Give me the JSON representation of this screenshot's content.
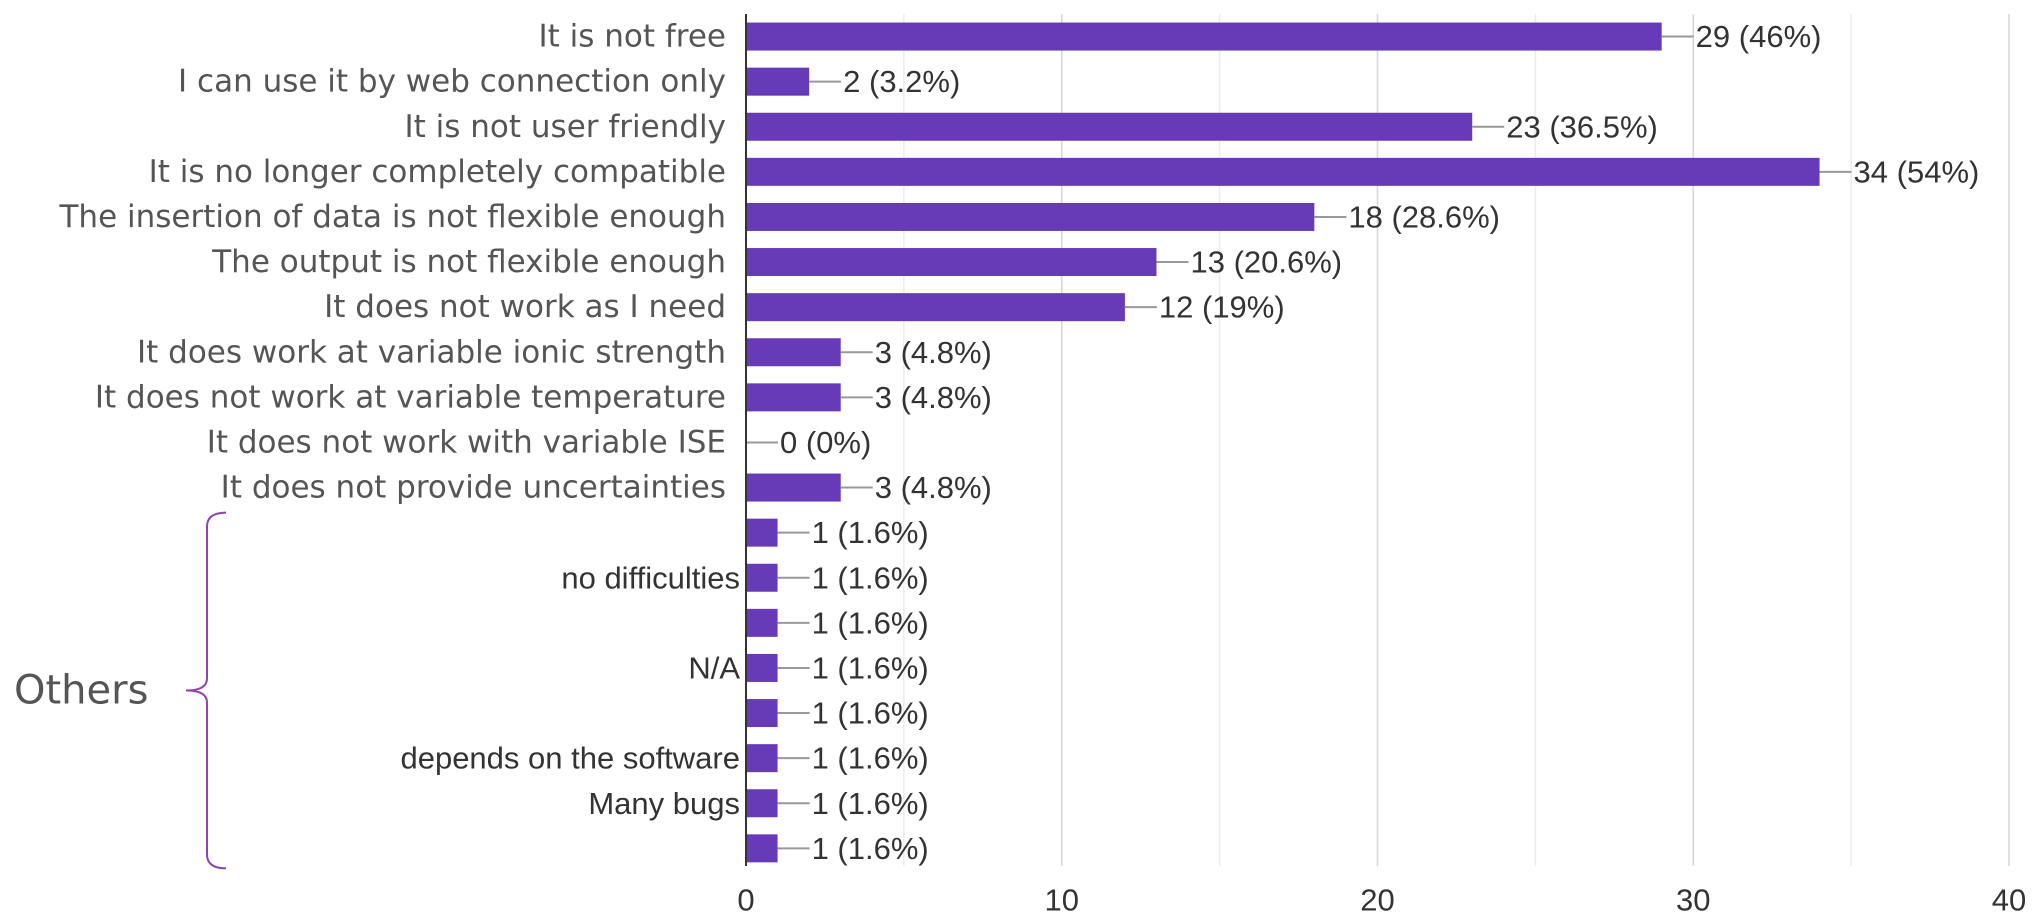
{
  "chart_data": {
    "type": "bar",
    "orientation": "horizontal",
    "xlim": [
      0,
      40
    ],
    "xticks": [
      0,
      10,
      20,
      30,
      40
    ],
    "grid": true,
    "bar_color": "#673ab7",
    "group_label": "Others",
    "categories": [
      "It is not free",
      "I can use it by web connection only",
      "It is not user friendly",
      "It is no longer completely compatible",
      "The insertion of data is not flexible enough",
      "The output is not flexible enough",
      "It does not work as I need",
      "It does work at variable ionic strength",
      "It does not work at variable temperature",
      "It does not work with variable ISE",
      "It does not provide uncertainties",
      "",
      "no difficulties",
      "",
      "N/A",
      "",
      "depends on the software",
      "Many bugs",
      ""
    ],
    "values": [
      29,
      2,
      23,
      34,
      18,
      13,
      12,
      3,
      3,
      0,
      3,
      1,
      1,
      1,
      1,
      1,
      1,
      1,
      1
    ],
    "data_labels": [
      "29 (46%)",
      "2 (3.2%)",
      "23 (36.5%)",
      "34 (54%)",
      "18 (28.6%)",
      "13 (20.6%)",
      "12 (19%)",
      "3 (4.8%)",
      "3 (4.8%)",
      "0 (0%)",
      "3 (4.8%)",
      "1 (1.6%)",
      "1 (1.6%)",
      "1 (1.6%)",
      "1 (1.6%)",
      "1 (1.6%)",
      "1 (1.6%)",
      "1 (1.6%)",
      "1 (1.6%)"
    ],
    "others_start_index": 11
  }
}
